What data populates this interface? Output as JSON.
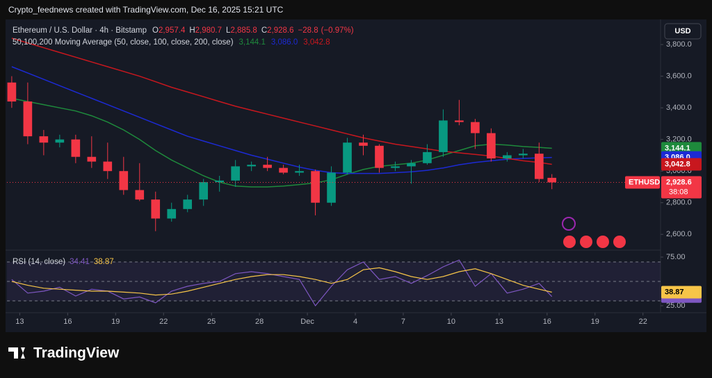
{
  "header": "Crypto_feednews created with TradingView.com, Dec 16, 2025 15:21 UTC",
  "currency_button": "USD",
  "brand": "TradingView",
  "chart_data": [
    {
      "type": "candlestick",
      "legend": {
        "title": "Ethereum / U.S. Dollar · 4h · Bitstamp",
        "items": [
          {
            "key": "O",
            "value": 2957.4,
            "label": "2,957.4"
          },
          {
            "key": "H",
            "value": 2980.7,
            "label": "2,980.7"
          },
          {
            "key": "L",
            "value": 2885.8,
            "label": "2,885.8"
          },
          {
            "key": "C",
            "value": 2928.6,
            "label": "2,928.6"
          }
        ],
        "change": {
          "value": -28.8,
          "label": "−28.8"
        },
        "change_pct": {
          "value": -0.97,
          "label": "(−0.97%)"
        }
      },
      "indicator_title": "50,100,200 Moving Average (50, close, 100, close, 200, close)",
      "symbol_badge": "ETHUSD",
      "countdown": "38:08",
      "x": [
        12.5,
        13.5,
        14.5,
        15.5,
        16.5,
        17.5,
        18.5,
        19.5,
        20.5,
        21.5,
        22.5,
        23.5,
        24.5,
        25.5,
        26.5,
        27.5,
        28.5,
        29.5,
        30.5,
        31.5,
        32.5,
        33.5,
        34.5,
        35.5,
        36.5,
        37.5,
        38.5,
        39.5,
        40.5,
        41.5,
        42.5,
        43.5,
        44.5,
        45.5,
        46.3
      ],
      "open": [
        3560,
        3440,
        3220,
        3180,
        3200,
        3090,
        3060,
        3000,
        2880,
        2820,
        2700,
        2760,
        2820,
        2930,
        2940,
        3030,
        3040,
        3020,
        2990,
        3000,
        2800,
        2990,
        3180,
        3160,
        3020,
        3030,
        3050,
        3120,
        3320,
        3310,
        3240,
        3080,
        3100,
        3110,
        2957.4
      ],
      "high": [
        3600,
        3560,
        3260,
        3230,
        3230,
        3220,
        3180,
        3090,
        3050,
        2870,
        2800,
        2850,
        2950,
        2970,
        3070,
        3060,
        3090,
        3040,
        3040,
        3010,
        3030,
        3210,
        3230,
        3170,
        3060,
        3070,
        3170,
        3390,
        3450,
        3330,
        3270,
        3120,
        3140,
        3180,
        2980.7
      ],
      "low": [
        3400,
        3170,
        3100,
        3150,
        3050,
        3020,
        2950,
        2850,
        2810,
        2620,
        2680,
        2740,
        2780,
        2870,
        2900,
        3000,
        3000,
        2980,
        2970,
        2720,
        2780,
        2980,
        3100,
        2990,
        3000,
        2920,
        3040,
        3090,
        3290,
        3140,
        3060,
        3060,
        3080,
        2930,
        2885.8
      ],
      "close": [
        3440,
        3220,
        3180,
        3200,
        3090,
        3060,
        3000,
        2880,
        2820,
        2700,
        2760,
        2820,
        2930,
        2940,
        3030,
        3040,
        3020,
        2990,
        3000,
        2800,
        2990,
        3180,
        3160,
        3020,
        3030,
        3050,
        3120,
        3320,
        3310,
        3240,
        3080,
        3100,
        3110,
        2950,
        2928.6
      ],
      "up_color": "#089981",
      "down_color": "#f23645",
      "series": [
        {
          "color": "#1e8a3c",
          "last_label": "3,144.1",
          "values": [
            3460,
            3440,
            3420,
            3400,
            3380,
            3350,
            3310,
            3260,
            3200,
            3130,
            3070,
            3020,
            2970,
            2930,
            2905,
            2900,
            2900,
            2905,
            2915,
            2925,
            2945,
            2980,
            3010,
            3030,
            3040,
            3050,
            3070,
            3100,
            3130,
            3160,
            3170,
            3165,
            3155,
            3150,
            3144.1
          ]
        },
        {
          "color": "#1c2ad4",
          "last_label": "3,086.0",
          "values": [
            3660,
            3620,
            3580,
            3540,
            3500,
            3460,
            3420,
            3380,
            3340,
            3300,
            3260,
            3220,
            3190,
            3160,
            3130,
            3100,
            3075,
            3050,
            3025,
            3005,
            2990,
            2985,
            2985,
            2985,
            2990,
            2995,
            3005,
            3020,
            3040,
            3055,
            3065,
            3075,
            3080,
            3084,
            3086.0
          ]
        },
        {
          "color": "#c8171e",
          "last_label": "3,042.8",
          "values": [
            3840,
            3810,
            3780,
            3750,
            3720,
            3690,
            3660,
            3630,
            3600,
            3565,
            3530,
            3500,
            3470,
            3440,
            3410,
            3385,
            3360,
            3335,
            3310,
            3285,
            3260,
            3235,
            3210,
            3190,
            3170,
            3155,
            3140,
            3125,
            3115,
            3105,
            3095,
            3080,
            3065,
            3055,
            3042.8
          ]
        }
      ],
      "xlim": [
        12.2,
        53.1
      ],
      "xticks": [
        13,
        16,
        19,
        22,
        25,
        28,
        {
          "value": 31,
          "label": "Dec"
        },
        {
          "value": 34,
          "label": "4"
        },
        {
          "value": 37,
          "label": "7"
        },
        {
          "value": 40,
          "label": "10"
        },
        {
          "value": 43,
          "label": "13"
        },
        {
          "value": 46,
          "label": "16"
        },
        {
          "value": 49,
          "label": "19"
        },
        {
          "value": 52,
          "label": "22"
        }
      ],
      "ylim": [
        2500,
        3950
      ],
      "yticks": [
        {
          "value": 2600,
          "label": "2,600.0"
        },
        {
          "value": 2800,
          "label": "2,800.0"
        },
        {
          "value": 3000,
          "label": "3,000.0"
        },
        {
          "value": 3200,
          "label": "3,200.0"
        },
        {
          "value": 3400,
          "label": "3,400.0"
        },
        {
          "value": 3600,
          "label": "3,600.0"
        },
        {
          "value": 3800,
          "label": "3,800.0"
        }
      ],
      "grid": false
    },
    {
      "type": "line",
      "title": "RSI (14, close)",
      "x": [
        12.5,
        13.5,
        14.5,
        15.5,
        16.5,
        17.5,
        18.5,
        19.5,
        20.5,
        21.5,
        22.5,
        23.5,
        24.5,
        25.5,
        26.5,
        27.5,
        28.5,
        29.5,
        30.5,
        31.5,
        32.5,
        33.5,
        34.5,
        35.5,
        36.5,
        37.5,
        38.5,
        39.5,
        40.5,
        41.5,
        42.5,
        43.5,
        44.5,
        45.5,
        46.3
      ],
      "series": [
        {
          "color": "#7e57c2",
          "last_label": "34.41",
          "values": [
            52,
            38,
            40,
            44,
            35,
            42,
            40,
            32,
            34,
            28,
            40,
            45,
            48,
            50,
            58,
            60,
            58,
            55,
            52,
            25,
            45,
            62,
            70,
            52,
            55,
            48,
            56,
            65,
            72,
            45,
            58,
            38,
            42,
            48,
            34.41
          ]
        },
        {
          "color": "#f7c548",
          "last_label": "38.87",
          "values": [
            50,
            46,
            43,
            42,
            41,
            40,
            40,
            39,
            38,
            36,
            37,
            40,
            44,
            48,
            52,
            55,
            57,
            57,
            55,
            52,
            48,
            52,
            62,
            64,
            60,
            55,
            52,
            55,
            60,
            63,
            58,
            52,
            46,
            42,
            38.87
          ]
        }
      ],
      "levels": [
        70,
        50,
        30
      ],
      "xlim": [
        12.2,
        53.1
      ],
      "ylim": [
        21.4,
        80.7
      ],
      "yticks": [
        {
          "value": 25,
          "label": "25.00"
        },
        {
          "value": 75,
          "label": "75.00"
        }
      ],
      "grid": false
    }
  ]
}
